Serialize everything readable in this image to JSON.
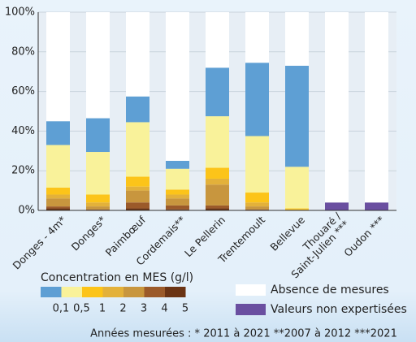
{
  "chart_data": {
    "type": "stacked-bar",
    "categories": [
      "Donges - 4m*",
      "Donges*",
      "Paimbœuf",
      "Cordemais**",
      "Le Pellerin",
      "Trentemoult",
      "Bellevue",
      "Thouaré / Saint-Julien ***",
      "Oudon ***"
    ],
    "series": [
      {
        "color": "#6b3414",
        "values": [
          1,
          0,
          1,
          0.5,
          1,
          0,
          0,
          0,
          0
        ]
      },
      {
        "color": "#9b5a2a",
        "values": [
          1,
          0.5,
          3,
          2,
          1.5,
          0.5,
          0,
          0,
          0
        ]
      },
      {
        "color": "#c8963e",
        "values": [
          4,
          1.5,
          6,
          3.5,
          10.5,
          1.5,
          0,
          0,
          0
        ]
      },
      {
        "color": "#e3b13a",
        "values": [
          2,
          2,
          2,
          2,
          3,
          2,
          0.5,
          0,
          0
        ]
      },
      {
        "color": "#fcc419",
        "values": [
          3.5,
          4,
          5,
          2.5,
          5.5,
          5,
          0.5,
          0,
          0
        ]
      },
      {
        "color": "#f9f29a",
        "values": [
          21.5,
          21.5,
          27.5,
          10.5,
          26,
          28.5,
          21,
          0,
          0
        ]
      },
      {
        "color": "#5e9fd4",
        "values": [
          12,
          17,
          13,
          4,
          24.5,
          37,
          51,
          0,
          0
        ]
      },
      {
        "name": "Valeurs non expertisées",
        "color": "#6a4fa0",
        "values": [
          0,
          0,
          0,
          0,
          0,
          0,
          0,
          4,
          4
        ]
      },
      {
        "name": "Absence de mesures",
        "color": "#ffffff",
        "values": [
          55,
          53.5,
          42.5,
          75,
          28,
          25.5,
          27,
          96,
          96
        ]
      }
    ],
    "ylim": [
      0,
      100
    ],
    "yticks": [
      {
        "value": 0,
        "label": "0%"
      },
      {
        "value": 20,
        "label": "20%"
      },
      {
        "value": 40,
        "label": "40%"
      },
      {
        "value": 60,
        "label": "60%"
      },
      {
        "value": 80,
        "label": "80%"
      },
      {
        "value": 100,
        "label": "100%"
      }
    ],
    "grid": true,
    "scale_title": "Concentration en MES (g/l)",
    "scale_ticks": [
      "0,1",
      "0,5",
      "1",
      "2",
      "3",
      "4",
      "5"
    ],
    "footnote": "Années mesurées : * 2011 à 2021   **2007 à 2012   ***2021"
  }
}
